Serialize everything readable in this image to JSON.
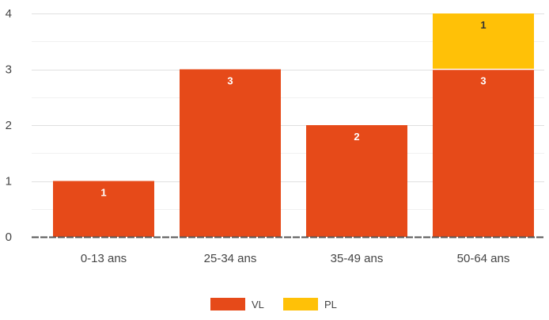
{
  "chart_data": {
    "type": "bar",
    "stacked": true,
    "categories": [
      "0-13 ans",
      "25-34 ans",
      "35-49 ans",
      "50-64 ans"
    ],
    "series": [
      {
        "name": "VL",
        "values": [
          1,
          3,
          2,
          3
        ],
        "color": "#e64a19"
      },
      {
        "name": "PL",
        "values": [
          0,
          0,
          0,
          1
        ],
        "color": "#ffc107"
      }
    ],
    "y_ticks": [
      "0",
      "1",
      "2",
      "3",
      "4"
    ],
    "ylim": [
      0,
      4
    ],
    "grid": true,
    "legend_position": "bottom",
    "data_label_color": "#ffffff",
    "data_label_color_on_light": "#333333"
  }
}
